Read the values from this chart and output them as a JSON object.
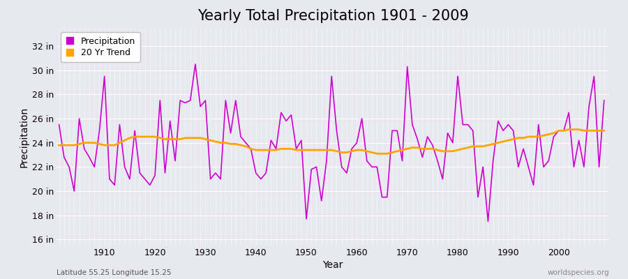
{
  "title": "Yearly Total Precipitation 1901 - 2009",
  "xlabel": "Year",
  "ylabel": "Precipitation",
  "lat_lon_label": "Latitude 55.25 Longitude 15.25",
  "watermark": "worldspecies.org",
  "years": [
    1901,
    1902,
    1903,
    1904,
    1905,
    1906,
    1907,
    1908,
    1909,
    1910,
    1911,
    1912,
    1913,
    1914,
    1915,
    1916,
    1917,
    1918,
    1919,
    1920,
    1921,
    1922,
    1923,
    1924,
    1925,
    1926,
    1927,
    1928,
    1929,
    1930,
    1931,
    1932,
    1933,
    1934,
    1935,
    1936,
    1937,
    1938,
    1939,
    1940,
    1941,
    1942,
    1943,
    1944,
    1945,
    1946,
    1947,
    1948,
    1949,
    1950,
    1951,
    1952,
    1953,
    1954,
    1955,
    1956,
    1957,
    1958,
    1959,
    1960,
    1961,
    1962,
    1963,
    1964,
    1965,
    1966,
    1967,
    1968,
    1969,
    1970,
    1971,
    1972,
    1973,
    1974,
    1975,
    1976,
    1977,
    1978,
    1979,
    1980,
    1981,
    1982,
    1983,
    1984,
    1985,
    1986,
    1987,
    1988,
    1989,
    1990,
    1991,
    1992,
    1993,
    1994,
    1995,
    1996,
    1997,
    1998,
    1999,
    2000,
    2001,
    2002,
    2003,
    2004,
    2005,
    2006,
    2007,
    2008,
    2009
  ],
  "precip": [
    25.5,
    22.8,
    22.0,
    20.0,
    26.0,
    23.5,
    22.8,
    22.0,
    25.0,
    29.5,
    21.0,
    20.5,
    25.5,
    22.0,
    21.0,
    25.0,
    21.5,
    21.0,
    20.5,
    21.3,
    27.5,
    21.5,
    25.8,
    22.5,
    27.5,
    27.3,
    27.5,
    30.5,
    27.0,
    27.5,
    21.0,
    21.5,
    21.0,
    27.5,
    24.8,
    27.5,
    24.5,
    24.0,
    23.5,
    21.5,
    21.0,
    21.5,
    24.2,
    23.5,
    26.5,
    25.8,
    26.3,
    23.5,
    24.2,
    17.7,
    21.8,
    22.0,
    19.2,
    22.5,
    29.5,
    25.0,
    22.0,
    21.5,
    23.5,
    24.0,
    26.0,
    22.5,
    22.0,
    22.0,
    19.5,
    19.5,
    25.0,
    25.0,
    22.5,
    30.3,
    25.5,
    24.3,
    22.8,
    24.5,
    23.8,
    22.5,
    21.0,
    24.8,
    24.0,
    29.5,
    25.5,
    25.5,
    25.0,
    19.5,
    22.0,
    17.5,
    22.5,
    25.8,
    25.0,
    25.5,
    25.0,
    22.0,
    23.5,
    22.0,
    20.5,
    25.5,
    22.0,
    22.5,
    24.5,
    25.0,
    25.0,
    26.5,
    22.0,
    24.2,
    22.0,
    27.0,
    29.5,
    22.0,
    27.5
  ],
  "trend": [
    23.8,
    23.8,
    23.8,
    23.8,
    23.9,
    24.0,
    24.0,
    24.0,
    23.9,
    23.8,
    23.8,
    23.8,
    24.0,
    24.2,
    24.4,
    24.5,
    24.5,
    24.5,
    24.5,
    24.5,
    24.4,
    24.3,
    24.3,
    24.3,
    24.3,
    24.4,
    24.4,
    24.4,
    24.4,
    24.3,
    24.2,
    24.1,
    24.0,
    24.0,
    23.9,
    23.9,
    23.8,
    23.7,
    23.5,
    23.4,
    23.4,
    23.4,
    23.4,
    23.4,
    23.5,
    23.5,
    23.5,
    23.4,
    23.4,
    23.4,
    23.4,
    23.4,
    23.4,
    23.4,
    23.4,
    23.3,
    23.2,
    23.2,
    23.3,
    23.4,
    23.4,
    23.3,
    23.2,
    23.1,
    23.1,
    23.1,
    23.2,
    23.3,
    23.4,
    23.5,
    23.6,
    23.6,
    23.5,
    23.5,
    23.5,
    23.4,
    23.3,
    23.3,
    23.3,
    23.4,
    23.5,
    23.6,
    23.7,
    23.7,
    23.7,
    23.8,
    23.9,
    24.0,
    24.1,
    24.2,
    24.3,
    24.4,
    24.4,
    24.5,
    24.5,
    24.5,
    24.6,
    24.7,
    24.8,
    25.0,
    25.0,
    25.1,
    25.1,
    25.1,
    25.0,
    25.0,
    25.0,
    25.0,
    25.0
  ],
  "precip_color": "#CC00CC",
  "trend_color": "#FFA500",
  "bg_color": "#E8E8F0",
  "plot_bg_color": "#E8E8F0",
  "grid_color": "#FFFFFF",
  "ytick_labels": [
    "16 in",
    "18 in",
    "20 in",
    "22 in",
    "24 in",
    "26 in",
    "28 in",
    "30 in",
    "32 in"
  ],
  "ytick_values": [
    16,
    18,
    20,
    22,
    24,
    26,
    28,
    30,
    32
  ],
  "ylim": [
    15.5,
    33.5
  ],
  "xlim": [
    1900.5,
    2010
  ],
  "xtick_values": [
    1910,
    1920,
    1930,
    1940,
    1950,
    1960,
    1970,
    1980,
    1990,
    2000
  ],
  "title_fontsize": 15,
  "axis_label_fontsize": 10,
  "tick_fontsize": 9,
  "legend_fontsize": 9
}
